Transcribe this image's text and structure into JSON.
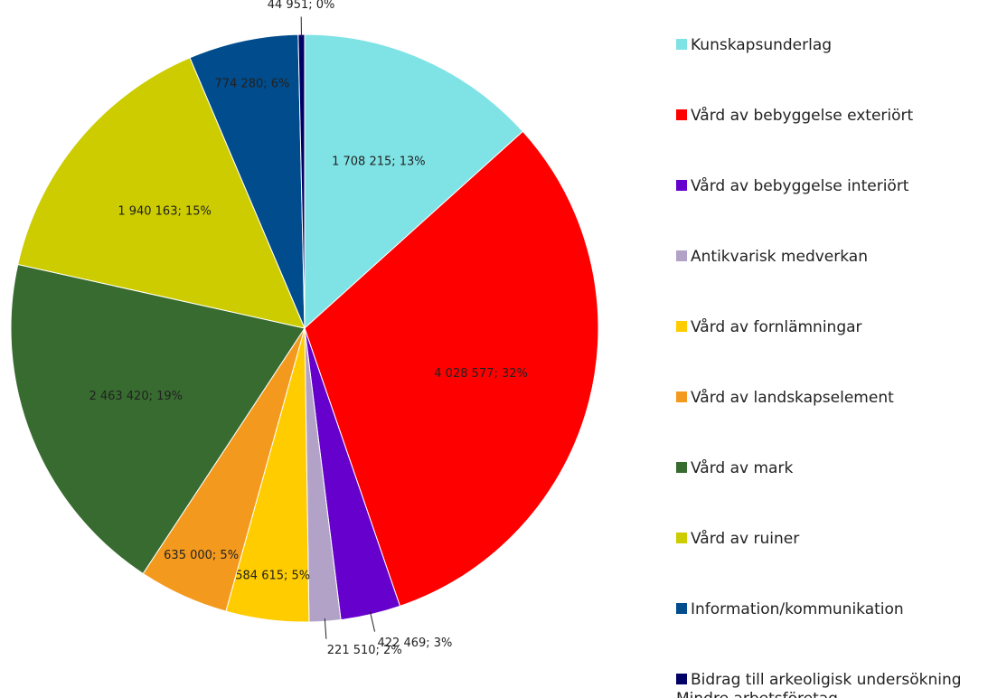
{
  "chart_data": {
    "type": "pie",
    "categories": [
      "Kunskapsunderlag",
      "Vård av bebyggelse exteriört",
      "Vård av bebyggelse interiört",
      "Antikvarisk medverkan",
      "Vård av fornlämningar",
      "Vård av landskapselement",
      "Vård av mark",
      "Vård av ruiner",
      "Information/kommunikation",
      "Bidrag till arkeoligisk undersökning Mindre arbetsföretag"
    ],
    "values": [
      1708215,
      4028577,
      422469,
      221510,
      584615,
      635000,
      2463420,
      1940163,
      774280,
      44951
    ],
    "value_labels": [
      "1 708 215; 13%",
      "4 028 577; 32%",
      "422 469; 3%",
      "221 510; 2%",
      "584 615; 5%",
      "635 000; 5%",
      "2 463 420; 19%",
      "1 940 163; 15%",
      "774 280; 6%",
      "44 951; 0%"
    ],
    "colors": [
      "#7fe3e6",
      "#ff0000",
      "#6600cc",
      "#b3a2c7",
      "#ffcc00",
      "#f39a1e",
      "#376b2f",
      "#cccc00",
      "#004c8c",
      "#000066"
    ],
    "legend": "right"
  }
}
